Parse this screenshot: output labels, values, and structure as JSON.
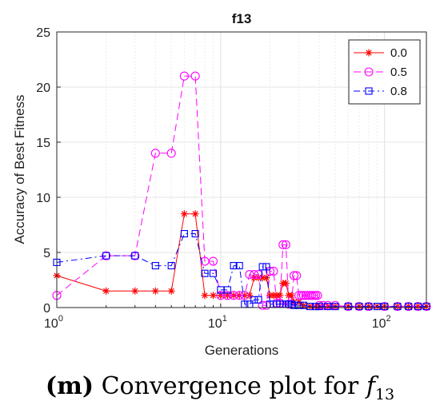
{
  "chart_data": {
    "type": "line",
    "title": "f13",
    "xlabel": "Generations",
    "ylabel": "Accuracy of Best Fitness",
    "xscale": "log",
    "xlim": [
      1,
      180
    ],
    "ylim": [
      0,
      25
    ],
    "yticks": [
      "0",
      "5",
      "10",
      "15",
      "20",
      "25"
    ],
    "xticks": [
      {
        "base": "10",
        "exp": "0"
      },
      {
        "base": "10",
        "exp": "1"
      },
      {
        "base": "10",
        "exp": "2"
      }
    ],
    "grid": true,
    "legend_position": "top-right",
    "series": [
      {
        "name": "0.0",
        "color": "#ff0000",
        "marker": "asterisk",
        "linestyle": "solid",
        "x": [
          1,
          2,
          3,
          4,
          5,
          6,
          7,
          8,
          9,
          10,
          11,
          12,
          13,
          14,
          15,
          16,
          17,
          18,
          19,
          20,
          21,
          22,
          23,
          24,
          25,
          26,
          27,
          28,
          30,
          32,
          35,
          38,
          40,
          45,
          50,
          60,
          70,
          80,
          90,
          100,
          120,
          140,
          160,
          180
        ],
        "y": [
          2.9,
          1.5,
          1.5,
          1.5,
          1.5,
          8.5,
          8.5,
          1.1,
          1.1,
          1.1,
          1.1,
          1.1,
          1.1,
          1.1,
          1.1,
          2.7,
          2.7,
          2.7,
          2.7,
          1.1,
          1.1,
          1.1,
          1.1,
          2.2,
          2.2,
          1.1,
          1.1,
          0.5,
          0.5,
          0.2,
          0.1,
          0.1,
          0.1,
          0.1,
          0.1,
          0.1,
          0.1,
          0.1,
          0.1,
          0.1,
          0.1,
          0.1,
          0.1,
          0.1
        ]
      },
      {
        "name": "0.5",
        "color": "#ff00ff",
        "marker": "circle",
        "linestyle": "dashed",
        "x": [
          1,
          2,
          3,
          4,
          5,
          6,
          7,
          8,
          9,
          10,
          11,
          12,
          13,
          14,
          15,
          16,
          17,
          18,
          19,
          20,
          21,
          22,
          23,
          24,
          25,
          26,
          27,
          28,
          29,
          30,
          31,
          32,
          33,
          34,
          35,
          36,
          37,
          38,
          39,
          40,
          42,
          45,
          50,
          60,
          70,
          80,
          100,
          120,
          140,
          160,
          180
        ],
        "y": [
          1.1,
          4.7,
          4.7,
          14.0,
          14.0,
          21.0,
          21.0,
          4.2,
          4.2,
          1.1,
          1.1,
          1.1,
          1.1,
          1.1,
          3.0,
          3.0,
          3.0,
          0.2,
          0.2,
          3.3,
          3.3,
          0.4,
          0.4,
          5.7,
          5.7,
          0.3,
          0.3,
          2.9,
          2.9,
          1.1,
          1.1,
          1.1,
          1.1,
          1.1,
          1.1,
          1.1,
          1.1,
          1.1,
          1.1,
          0.2,
          0.2,
          0.2,
          0.2,
          0.1,
          0.1,
          0.1,
          0.1,
          0.1,
          0.1,
          0.1,
          0.1
        ]
      },
      {
        "name": "0.8",
        "color": "#0000ff",
        "marker": "square",
        "linestyle": "dashdot",
        "x": [
          1,
          2,
          3,
          4,
          5,
          6,
          7,
          8,
          9,
          10,
          11,
          12,
          13,
          14,
          15,
          16,
          17,
          18,
          19,
          20,
          21,
          22,
          23,
          24,
          25,
          26,
          27,
          28,
          30,
          32,
          35,
          38,
          40,
          45,
          50,
          60,
          70,
          80,
          90,
          100,
          120,
          140,
          160,
          180
        ],
        "y": [
          4.1,
          4.7,
          4.7,
          3.8,
          3.8,
          6.7,
          6.7,
          3.1,
          3.1,
          1.6,
          1.6,
          3.8,
          3.8,
          0.3,
          0.3,
          0.7,
          0.7,
          3.7,
          3.7,
          0.3,
          0.3,
          0.3,
          0.3,
          0.3,
          0.3,
          0.3,
          0.3,
          0.2,
          0.2,
          0.2,
          0.1,
          0.1,
          0.1,
          0.1,
          0.1,
          0.1,
          0.1,
          0.1,
          0.1,
          0.1,
          0.1,
          0.1,
          0.1,
          0.1
        ]
      }
    ]
  },
  "caption": {
    "label": "(m)",
    "text": "Convergence plot for",
    "symbol": "f",
    "subscript": "13"
  }
}
